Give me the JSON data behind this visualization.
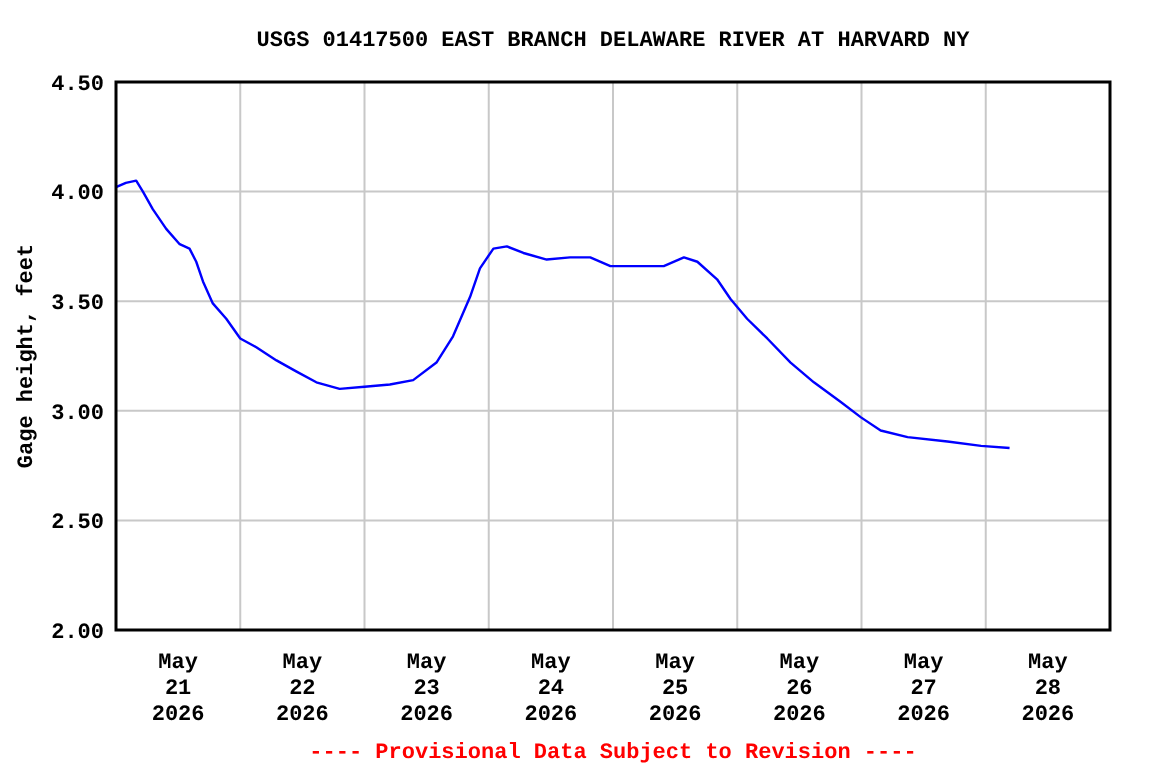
{
  "chart_data": {
    "type": "line",
    "title": "USGS 01417500 EAST BRANCH DELAWARE RIVER AT HARVARD NY",
    "ylabel": "Gage height, feet",
    "annotations": [
      "---- Provisional Data Subject to Revision ----"
    ],
    "x": [
      "2026-05-21T00:00",
      "2026-05-21T01:54",
      "2026-05-21T03:54",
      "2026-05-21T05:12",
      "2026-05-21T07:06",
      "2026-05-21T09:42",
      "2026-05-21T12:18",
      "2026-05-21T14:12",
      "2026-05-21T15:30",
      "2026-05-21T16:48",
      "2026-05-21T18:42",
      "2026-05-21T21:18",
      "2026-05-22T00:00",
      "2026-05-22T03:06",
      "2026-05-22T07:00",
      "2026-05-22T10:48",
      "2026-05-22T14:42",
      "2026-05-22T19:12",
      "2026-05-23T00:00",
      "2026-05-23T04:54",
      "2026-05-23T09:24",
      "2026-05-23T13:54",
      "2026-05-23T17:06",
      "2026-05-23T20:24",
      "2026-05-23T22:18",
      "2026-05-24T00:54",
      "2026-05-24T03:30",
      "2026-05-24T06:42",
      "2026-05-24T11:12",
      "2026-05-24T15:42",
      "2026-05-24T19:36",
      "2026-05-24T23:30",
      "2026-05-25T03:18",
      "2026-05-25T05:18",
      "2026-05-25T09:48",
      "2026-05-25T13:42",
      "2026-05-25T16:18",
      "2026-05-25T20:06",
      "2026-05-25T22:42",
      "2026-05-26T01:54",
      "2026-05-26T05:48",
      "2026-05-26T10:18",
      "2026-05-26T14:48",
      "2026-05-26T20:00",
      "2026-05-26T23:54",
      "2026-05-27T03:42",
      "2026-05-27T08:54",
      "2026-05-27T16:36",
      "2026-05-27T23:06",
      "2026-05-28T04:36"
    ],
    "series": [
      {
        "color": "#0000ff",
        "values": [
          4.02,
          4.04,
          4.05,
          4.0,
          3.92,
          3.83,
          3.76,
          3.74,
          3.68,
          3.59,
          3.49,
          3.42,
          3.33,
          3.29,
          3.23,
          3.18,
          3.13,
          3.1,
          3.11,
          3.12,
          3.14,
          3.22,
          3.34,
          3.52,
          3.65,
          3.74,
          3.75,
          3.72,
          3.69,
          3.7,
          3.7,
          3.66,
          3.66,
          3.66,
          3.66,
          3.7,
          3.68,
          3.6,
          3.51,
          3.42,
          3.33,
          3.22,
          3.13,
          3.04,
          2.97,
          2.91,
          2.88,
          2.86,
          2.84,
          2.83
        ]
      }
    ],
    "xlim": [
      "2026-05-21T00:00",
      "2026-05-29T00:00"
    ],
    "xticks": [
      {
        "value": "2026-05-21T12:00",
        "label": "May\n21\n2026"
      },
      {
        "value": "2026-05-22T12:00",
        "label": "May\n22\n2026"
      },
      {
        "value": "2026-05-23T12:00",
        "label": "May\n23\n2026"
      },
      {
        "value": "2026-05-24T12:00",
        "label": "May\n24\n2026"
      },
      {
        "value": "2026-05-25T12:00",
        "label": "May\n25\n2026"
      },
      {
        "value": "2026-05-26T12:00",
        "label": "May\n26\n2026"
      },
      {
        "value": "2026-05-27T12:00",
        "label": "May\n27\n2026"
      },
      {
        "value": "2026-05-28T12:00",
        "label": "May\n28\n2026"
      },
      {
        "value": "2026-05-22T00:00",
        "label": null
      },
      {
        "value": "2026-05-23T00:00",
        "label": null
      },
      {
        "value": "2026-05-24T00:00",
        "label": null
      },
      {
        "value": "2026-05-25T00:00",
        "label": null
      },
      {
        "value": "2026-05-26T00:00",
        "label": null
      },
      {
        "value": "2026-05-27T00:00",
        "label": null
      },
      {
        "value": "2026-05-28T00:00",
        "label": null
      }
    ],
    "ylim": [
      2.0,
      4.5
    ],
    "yticks": [
      {
        "value": 2.0,
        "label": "2.00"
      },
      {
        "value": 2.5,
        "label": "2.50"
      },
      {
        "value": 3.0,
        "label": "3.00"
      },
      {
        "value": 3.5,
        "label": "3.50"
      },
      {
        "value": 4.0,
        "label": "4.00"
      },
      {
        "value": 4.5,
        "label": "4.50"
      }
    ],
    "grid": true,
    "marker": "none",
    "line_style": "solid"
  }
}
